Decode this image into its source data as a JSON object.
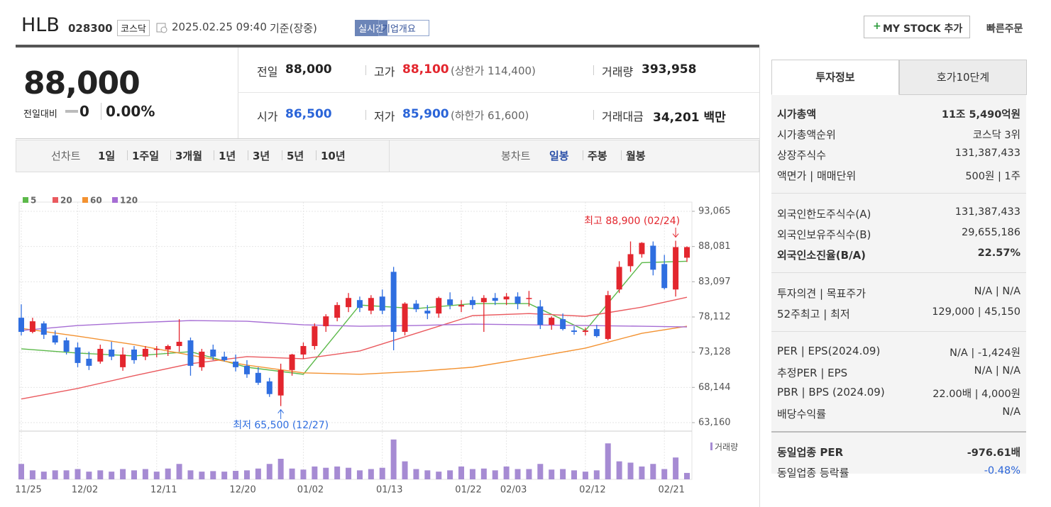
{
  "header": {
    "name": "HLB",
    "code": "028300",
    "market": "코스닥",
    "datetime": "2025.02.25 09:40",
    "status": "기준(장중)",
    "realtime": "실시간",
    "overview": "기업개요",
    "my_stock": "MY STOCK 추가",
    "quick_order": "빠른주문"
  },
  "quote": {
    "price": "88,000",
    "change_label": "전일대비",
    "change": "0",
    "rate": "0.00%",
    "items": [
      {
        "label": "전일",
        "value": "88,000",
        "color": "#222222"
      },
      {
        "label": "고가",
        "value": "88,100",
        "note": "(상한가 114,400)",
        "color": "#e3262e"
      },
      {
        "label": "거래량",
        "value": "393,958",
        "color": "#222222"
      },
      {
        "label": "시가",
        "value": "86,500",
        "color": "#2a64d8"
      },
      {
        "label": "저가",
        "value": "85,900",
        "note": "(하한가 61,600)",
        "color": "#2a64d8"
      },
      {
        "label": "거래대금",
        "value": "34,201 백만",
        "color": "#222222"
      }
    ]
  },
  "periods": {
    "line_label": "선차트",
    "line_tabs": [
      "1일",
      "1주일",
      "3개월",
      "1년",
      "3년",
      "5년",
      "10년"
    ],
    "candle_label": "봉차트",
    "candle_tabs": [
      "일봉",
      "주봉",
      "월봉"
    ],
    "active": "일봉"
  },
  "chart_data": {
    "type": "candlestick",
    "categories": [
      "11/25",
      null,
      null,
      null,
      null,
      "12/02",
      null,
      null,
      null,
      null,
      null,
      null,
      "12/11",
      null,
      null,
      null,
      null,
      null,
      null,
      "12/20",
      null,
      null,
      null,
      null,
      null,
      "01/02",
      null,
      null,
      null,
      null,
      null,
      null,
      "01/13",
      null,
      null,
      null,
      null,
      null,
      null,
      "01/22",
      null,
      null,
      null,
      "02/03",
      null,
      null,
      null,
      null,
      null,
      null,
      "02/12",
      null,
      null,
      null,
      null,
      null,
      null,
      "02/21",
      null,
      null
    ],
    "open": [
      78000,
      76000,
      77200,
      75500,
      74800,
      73800,
      72200,
      71800,
      73500,
      71000,
      73500,
      72500,
      73600,
      73500,
      74000,
      74800,
      71000,
      73500,
      72500,
      71800,
      71200,
      70200,
      69000,
      67000,
      70600,
      72800,
      74000,
      76800,
      78000,
      79500,
      80500,
      79000,
      81000,
      84500,
      76000,
      80000,
      79000,
      78600,
      80600,
      79600,
      80500,
      80200,
      80800,
      80600,
      81000,
      80800,
      79600,
      77000,
      77800,
      76200,
      76000,
      76400,
      75000,
      82000,
      85300,
      87000,
      88200,
      85600,
      82000,
      86500
    ],
    "high": [
      79900,
      78000,
      77500,
      76200,
      75200,
      74500,
      73200,
      74200,
      74600,
      73800,
      74000,
      74000,
      74000,
      74200,
      77800,
      75200,
      73600,
      74200,
      73200,
      72800,
      72000,
      71000,
      69500,
      71500,
      72900,
      74500,
      77200,
      78500,
      80200,
      81500,
      81000,
      81200,
      82000,
      85200,
      80200,
      80500,
      79800,
      81000,
      81600,
      80500,
      81000,
      81200,
      81500,
      81500,
      81600,
      81800,
      80500,
      78200,
      78600,
      76800,
      76600,
      77000,
      81800,
      86000,
      88800,
      88700,
      88800,
      86900,
      88900,
      88100
    ],
    "low": [
      75500,
      75800,
      75000,
      74200,
      72800,
      71000,
      70600,
      71500,
      72000,
      70500,
      71500,
      72000,
      72400,
      72600,
      73200,
      69800,
      70500,
      72000,
      71800,
      70400,
      69500,
      68500,
      66800,
      65500,
      69800,
      72200,
      73500,
      76000,
      77500,
      78800,
      78800,
      78500,
      78500,
      73400,
      75500,
      78800,
      77800,
      78000,
      79200,
      78800,
      79200,
      76000,
      79800,
      79800,
      79200,
      79600,
      76400,
      76300,
      76200,
      75600,
      75500,
      75200,
      74800,
      81500,
      84500,
      86500,
      84000,
      82000,
      81000,
      85900
    ],
    "close": [
      76000,
      77500,
      75600,
      74500,
      73200,
      71600,
      71200,
      73600,
      72500,
      72800,
      72000,
      73600,
      73600,
      74000,
      74600,
      71200,
      73200,
      72500,
      72000,
      71000,
      70000,
      68800,
      67200,
      70600,
      72800,
      74000,
      76800,
      78200,
      79800,
      80800,
      79400,
      80800,
      79000,
      76000,
      80000,
      79200,
      78600,
      80800,
      79800,
      79800,
      79800,
      80800,
      80400,
      81000,
      80000,
      80800,
      77000,
      78000,
      76400,
      76000,
      76200,
      75400,
      81200,
      85200,
      87000,
      88600,
      84800,
      82200,
      88000,
      88000
    ],
    "volume": [
      600000,
      350000,
      300000,
      350000,
      350000,
      400000,
      300000,
      350000,
      300000,
      400000,
      350000,
      400000,
      300000,
      420000,
      600000,
      350000,
      300000,
      320000,
      300000,
      330000,
      350000,
      420000,
      600000,
      800000,
      420000,
      380000,
      500000,
      450000,
      500000,
      450000,
      350000,
      400000,
      450000,
      1550000,
      700000,
      400000,
      350000,
      300000,
      350000,
      500000,
      400000,
      420000,
      350000,
      500000,
      400000,
      400000,
      600000,
      380000,
      400000,
      350000,
      300000,
      350000,
      1400000,
      700000,
      650000,
      500000,
      600000,
      400000,
      850000,
      250000
    ],
    "up_color": "#e3262e",
    "down_color": "#2f6ee0",
    "volume_color": "#a68bd3",
    "ylim": [
      63160,
      93065
    ],
    "yticks": [
      {
        "value": 63160,
        "label": "63,160"
      },
      {
        "value": 68144,
        "label": "68,144"
      },
      {
        "value": 73128,
        "label": "73,128"
      },
      {
        "value": 78112,
        "label": "78,112"
      },
      {
        "value": 83097,
        "label": "83,097"
      },
      {
        "value": 88081,
        "label": "88,081"
      },
      {
        "value": 93065,
        "label": "93,065"
      }
    ],
    "volume_ylim": [
      0,
      1600000
    ],
    "volume_label": "거래량",
    "grid": true,
    "ma": [
      {
        "name": "5",
        "color": "#5cb94a",
        "x": [
          0,
          5,
          10,
          15,
          20,
          25,
          30,
          35,
          40,
          45,
          50,
          55,
          59
        ],
        "values": [
          73600,
          73000,
          72600,
          73200,
          71000,
          70000,
          79800,
          79300,
          80000,
          80000,
          76200,
          85800,
          86000
        ]
      },
      {
        "name": "20",
        "color": "#ea5a5f",
        "x": [
          0,
          5,
          10,
          15,
          20,
          25,
          30,
          35,
          40,
          45,
          50,
          55,
          59
        ],
        "values": [
          66500,
          68000,
          69800,
          71500,
          72500,
          72200,
          73300,
          75800,
          78300,
          78600,
          78200,
          79500,
          80900
        ]
      },
      {
        "name": "60",
        "color": "#f39231",
        "x": [
          0,
          5,
          10,
          15,
          20,
          25,
          30,
          35,
          40,
          45,
          50,
          55,
          59
        ],
        "values": [
          76500,
          75400,
          74200,
          72700,
          71300,
          70200,
          70000,
          70400,
          71000,
          72300,
          73700,
          75800,
          76800
        ]
      },
      {
        "name": "120",
        "color": "#a66dd4",
        "x": [
          0,
          5,
          10,
          15,
          20,
          25,
          30,
          35,
          40,
          45,
          50,
          55,
          59
        ],
        "values": [
          76200,
          76900,
          77300,
          77600,
          77500,
          77000,
          76800,
          76900,
          77100,
          77000,
          76900,
          76800,
          76700
        ]
      }
    ],
    "high_note": "최고 88,900 (02/24)",
    "low_note": "최저 65,500 (12/27)"
  },
  "sidebar": {
    "tabs": [
      "투자정보",
      "호가10단계"
    ],
    "groups": [
      [
        {
          "label": "시가총액",
          "value": "11조 5,490억원",
          "strong": true
        },
        {
          "label": "시가총액순위",
          "value": "코스닥 3위"
        },
        {
          "label": "상장주식수",
          "value": "131,387,433"
        },
        {
          "label": "액면가 | 매매단위",
          "value": "500원 | 1주"
        }
      ],
      [
        {
          "label": "외국인한도주식수(A)",
          "value": "131,387,433"
        },
        {
          "label": "외국인보유주식수(B)",
          "value": "29,655,186"
        },
        {
          "label": "외국인소진율(B/A)",
          "value": "22.57%",
          "strong": true
        }
      ],
      [
        {
          "label": "투자의견 | 목표주가",
          "value": "N/A | N/A"
        },
        {
          "label": "52주최고 | 최저",
          "value": "129,000 | 45,150"
        }
      ],
      [
        {
          "label": "PER | EPS(2024.09)",
          "value": "N/A | -1,424원"
        },
        {
          "label": "추정PER | EPS",
          "value": "N/A | N/A"
        },
        {
          "label": "PBR | BPS (2024.09)",
          "value": "22.00배 | 4,000원"
        },
        {
          "label": "배당수익률",
          "value": "N/A"
        }
      ],
      [
        {
          "label": "동일업종 PER",
          "value": "-976.61배",
          "strong": true
        },
        {
          "label": "동일업종 등락률",
          "value": "-0.48%",
          "color": "#2a64d8"
        }
      ]
    ]
  }
}
